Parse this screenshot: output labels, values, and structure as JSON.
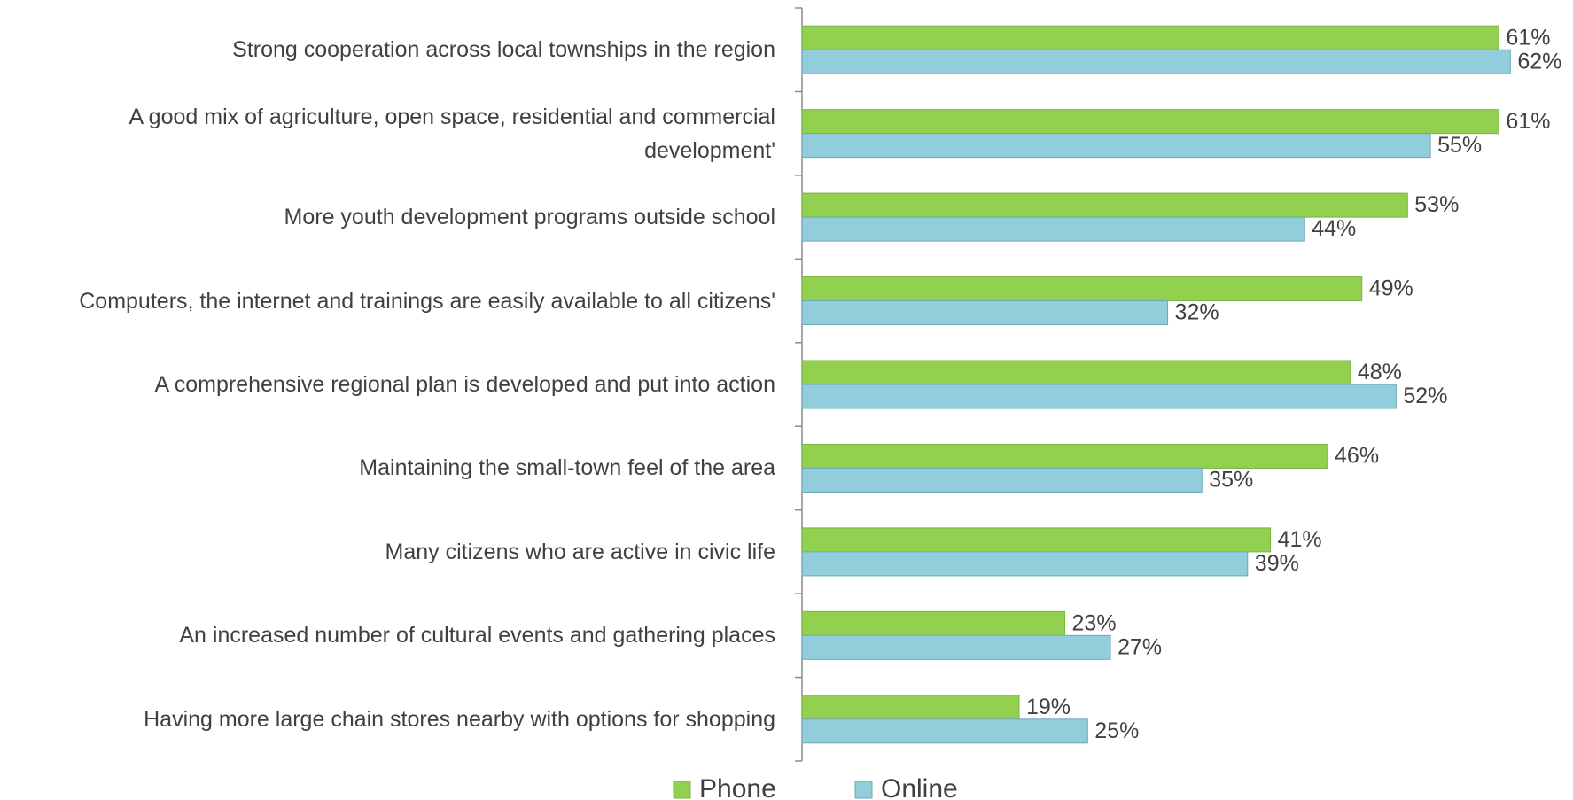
{
  "chart_data": {
    "type": "barh",
    "categories": [
      "Strong cooperation across local townships in the region",
      "A good mix of agriculture, open space, residential and commercial development'",
      "More youth development programs outside school",
      "Computers, the internet and trainings are easily available to all citizens'",
      "A comprehensive regional plan is developed and put into action",
      "Maintaining the small-town feel of the area",
      "Many citizens who are active in civic life",
      "An increased number of cultural events and gathering places",
      "Having more large chain stores nearby with options for shopping"
    ],
    "series": [
      {
        "name": "Phone",
        "color": "#92d050",
        "values": [
          61,
          61,
          53,
          49,
          48,
          46,
          41,
          23,
          19
        ],
        "value_labels": [
          "61%",
          "61%",
          "53%",
          "49%",
          "48%",
          "46%",
          "41%",
          "23%",
          "19%"
        ]
      },
      {
        "name": "Online",
        "color": "#92cddc",
        "values": [
          62,
          55,
          44,
          32,
          52,
          35,
          39,
          27,
          25
        ],
        "value_labels": [
          "62%",
          "55%",
          "44%",
          "32%",
          "52%",
          "35%",
          "39%",
          "27%",
          "25%"
        ]
      }
    ],
    "xlim": [
      0,
      65
    ],
    "legend": "bottom"
  }
}
